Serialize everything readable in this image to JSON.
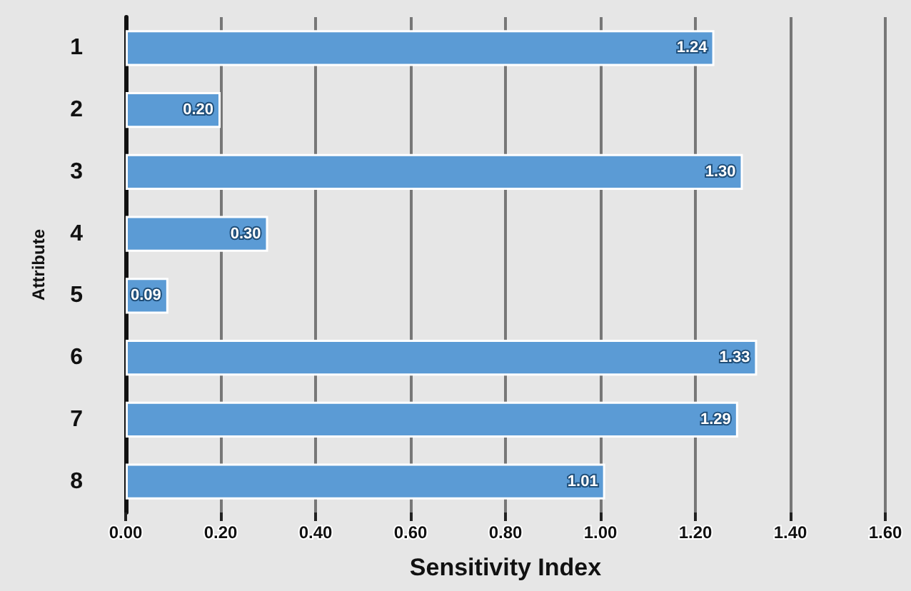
{
  "chart_data": {
    "type": "bar",
    "orientation": "horizontal",
    "xlabel": "Sensitivity Index",
    "ylabel": "Attribute",
    "categories": [
      "1",
      "2",
      "3",
      "4",
      "5",
      "6",
      "7",
      "8"
    ],
    "values": [
      1.24,
      0.2,
      1.3,
      0.3,
      0.09,
      1.33,
      1.29,
      1.01
    ],
    "value_labels": [
      "1.24",
      "0.20",
      "1.30",
      "0.30",
      "0.09",
      "1.33",
      "1.29",
      "1.01"
    ],
    "color": "#5b9bd5",
    "xlim": [
      0,
      1.6
    ],
    "xticks": [
      {
        "value": 0,
        "label": "0.00"
      },
      {
        "value": 0.2,
        "label": "0.20"
      },
      {
        "value": 0.4,
        "label": "0.40"
      },
      {
        "value": 0.6,
        "label": "0.60"
      },
      {
        "value": 0.8,
        "label": "0.80"
      },
      {
        "value": 1.0,
        "label": "1.00"
      },
      {
        "value": 1.2,
        "label": "1.20"
      },
      {
        "value": 1.4,
        "label": "1.40"
      },
      {
        "value": 1.6,
        "label": "1.60"
      }
    ],
    "grid": "x"
  }
}
